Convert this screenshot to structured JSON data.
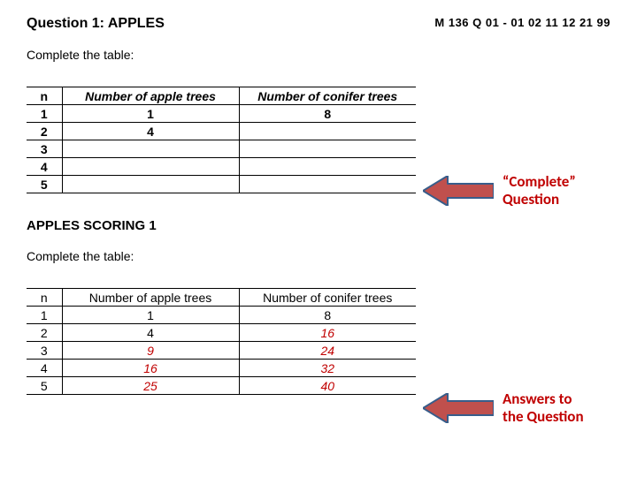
{
  "header": {
    "title": "Question 1: APPLES",
    "code": "M 136 Q 01 -  01  02  11  12  21  99"
  },
  "section1": {
    "instruction": "Complete the table:",
    "columns": {
      "n": "n",
      "apple": "Number of apple trees",
      "conifer": "Number of conifer trees"
    },
    "rows": [
      {
        "n": "1",
        "apple": "1",
        "conifer": "8"
      },
      {
        "n": "2",
        "apple": "4",
        "conifer": ""
      },
      {
        "n": "3",
        "apple": "",
        "conifer": ""
      },
      {
        "n": "4",
        "apple": "",
        "conifer": ""
      },
      {
        "n": "5",
        "apple": "",
        "conifer": ""
      }
    ]
  },
  "section2": {
    "title": "APPLES SCORING 1",
    "instruction": "Complete the table:",
    "columns": {
      "n": "n",
      "apple": "Number of apple trees",
      "conifer": "Number of conifer trees"
    },
    "rows": [
      {
        "n": "1",
        "apple": "1",
        "conifer": "8",
        "apple_ans": false,
        "conifer_ans": false
      },
      {
        "n": "2",
        "apple": "4",
        "conifer": "16",
        "apple_ans": false,
        "conifer_ans": true
      },
      {
        "n": "3",
        "apple": "9",
        "conifer": "24",
        "apple_ans": true,
        "conifer_ans": true
      },
      {
        "n": "4",
        "apple": "16",
        "conifer": "32",
        "apple_ans": true,
        "conifer_ans": true
      },
      {
        "n": "5",
        "apple": "25",
        "conifer": "40",
        "apple_ans": true,
        "conifer_ans": true
      }
    ]
  },
  "annotations": {
    "a1_line1": "“Complete”",
    "a1_line2": "Question",
    "a2_line1": "Answers to",
    "a2_line2": "the Question"
  },
  "arrow_color": "#c0504d",
  "arrow_border": "#385d8a"
}
